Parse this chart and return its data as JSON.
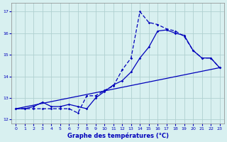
{
  "title": "Graphe des températures (°C)",
  "bg_color": "#d8f0f0",
  "line_color": "#0000bb",
  "grid_color": "#b0d0d0",
  "xlim": [
    -0.5,
    23.5
  ],
  "ylim": [
    11.8,
    17.4
  ],
  "yticks": [
    12,
    13,
    14,
    15,
    16,
    17
  ],
  "xticks": [
    0,
    1,
    2,
    3,
    4,
    5,
    6,
    7,
    8,
    9,
    10,
    11,
    12,
    13,
    14,
    15,
    16,
    17,
    18,
    19,
    20,
    21,
    22,
    23
  ],
  "line1_x": [
    0,
    1,
    2,
    3,
    4,
    5,
    6,
    7,
    8,
    9,
    10,
    11,
    12,
    13,
    14,
    15,
    16,
    17,
    18,
    19,
    20,
    21,
    22,
    23
  ],
  "line1_y": [
    12.5,
    12.5,
    12.5,
    12.5,
    12.5,
    12.5,
    12.5,
    12.3,
    13.1,
    13.1,
    13.35,
    13.55,
    14.3,
    14.85,
    17.0,
    16.5,
    16.4,
    16.2,
    16.1,
    15.85,
    15.2,
    14.85,
    14.85,
    14.4
  ],
  "line2_x": [
    0,
    1,
    2,
    3,
    4,
    5,
    6,
    7,
    8,
    9,
    10,
    11,
    12,
    13,
    14,
    15,
    16,
    17,
    18,
    19,
    20,
    21,
    22,
    23
  ],
  "line2_y": [
    12.5,
    12.5,
    12.6,
    12.8,
    12.6,
    12.6,
    12.7,
    12.6,
    12.5,
    13.0,
    13.3,
    13.6,
    13.8,
    14.2,
    14.85,
    15.35,
    16.1,
    16.15,
    16.0,
    15.9,
    15.2,
    14.85,
    14.85,
    14.4
  ],
  "line3_x": [
    0,
    23
  ],
  "line3_y": [
    12.5,
    14.4
  ]
}
